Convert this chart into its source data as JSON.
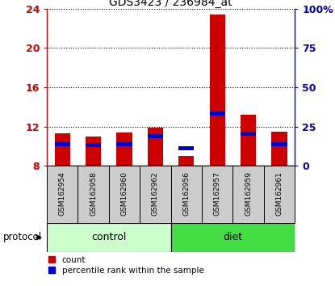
{
  "title": "GDS3423 / 236984_at",
  "samples": [
    "GSM162954",
    "GSM162958",
    "GSM162960",
    "GSM162962",
    "GSM162956",
    "GSM162957",
    "GSM162959",
    "GSM162961"
  ],
  "red_values": [
    11.3,
    11.0,
    11.4,
    11.9,
    9.0,
    23.4,
    13.2,
    11.5
  ],
  "blue_values": [
    10.0,
    9.9,
    10.0,
    10.8,
    9.6,
    13.1,
    11.1,
    10.0
  ],
  "blue_bar_height": 0.4,
  "y_min": 8,
  "y_max": 24,
  "y_ticks_left": [
    8,
    12,
    16,
    20,
    24
  ],
  "y_ticks_right_labels": [
    "0",
    "25",
    "50",
    "75",
    "100%"
  ],
  "left_tick_color": "#cc0000",
  "right_tick_color": "#0000bb",
  "bar_width": 0.5,
  "red_color": "#cc0000",
  "blue_color": "#0000cc",
  "control_bg_light": "#ccffcc",
  "diet_bg_dark": "#44dd44",
  "sample_box_bg": "#cccccc",
  "control_label": "control",
  "diet_label": "diet",
  "protocol_label": "protocol",
  "legend_count": "count",
  "legend_percentile": "percentile rank within the sample",
  "n_control": 4,
  "n_diet": 4,
  "figsize": [
    4.15,
    3.54
  ],
  "dpi": 100
}
